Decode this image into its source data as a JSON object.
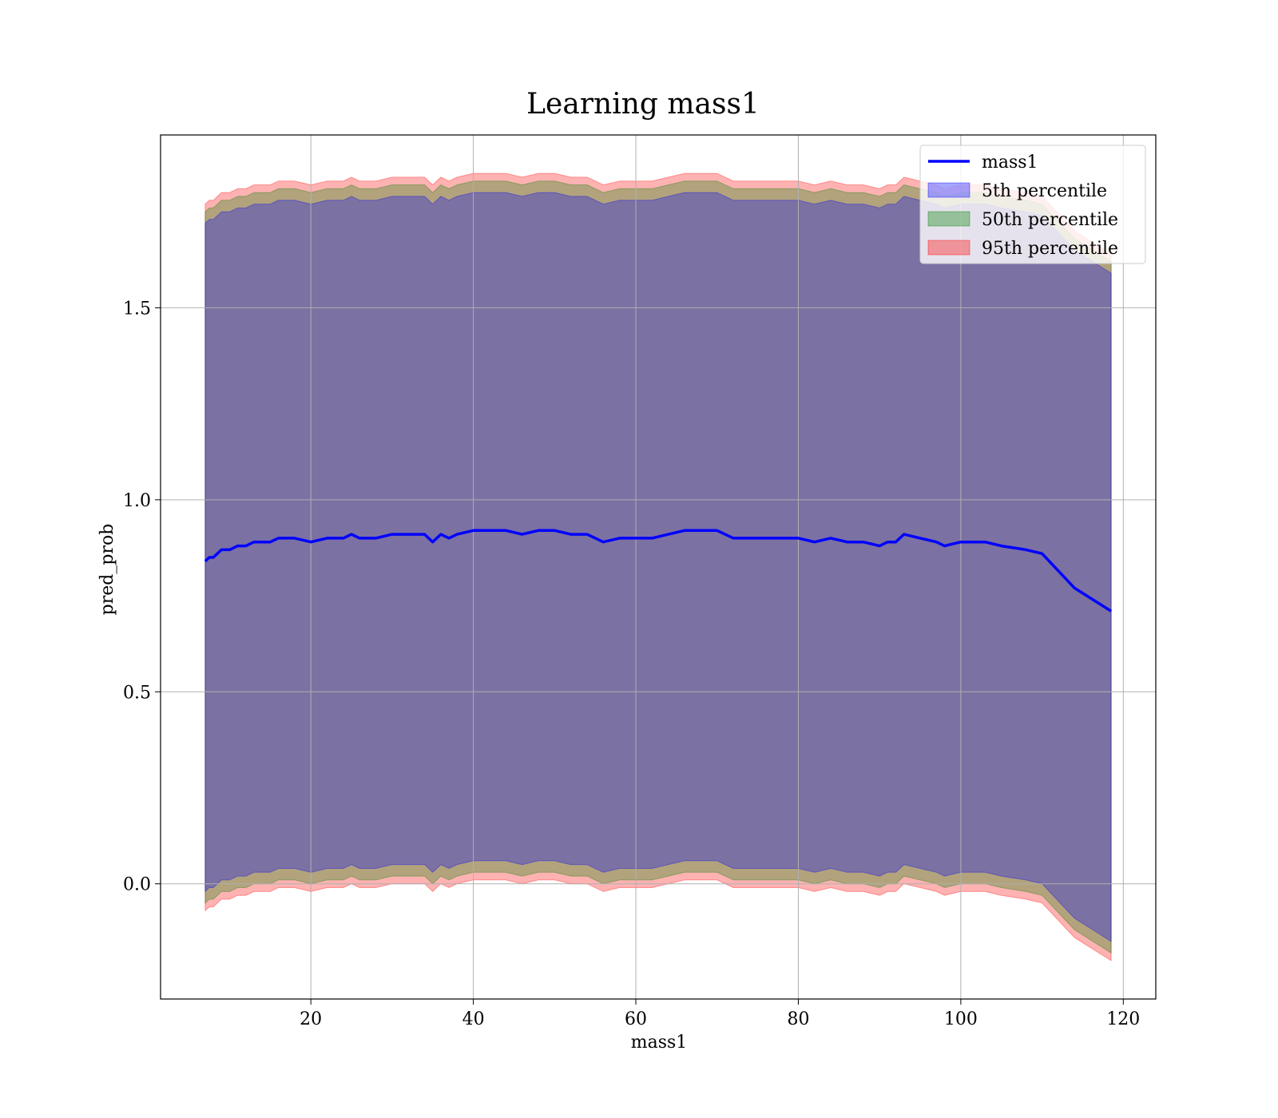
{
  "chart_data": {
    "type": "line",
    "title": "Learning mass1",
    "xlabel": "mass1",
    "ylabel": "pred_prob",
    "xlim": [
      1.5,
      124
    ],
    "ylim": [
      -0.3,
      1.95
    ],
    "xticks": [
      20,
      40,
      60,
      80,
      100,
      120
    ],
    "yticks": [
      0.0,
      0.5,
      1.0,
      1.5
    ],
    "grid": true,
    "legend_position": "top-right",
    "legend": [
      "mass1",
      "5th percentile",
      "50th percentile",
      "95th percentile"
    ],
    "series": [
      {
        "name": "mass1",
        "kind": "line",
        "color": "#0000ff",
        "x": [
          7,
          7.5,
          8,
          8.5,
          9,
          10,
          11,
          12,
          13,
          14,
          15,
          16,
          18,
          20,
          22,
          24,
          25,
          26,
          28,
          30,
          32,
          34,
          35,
          36,
          37,
          38,
          40,
          42,
          44,
          46,
          48,
          50,
          52,
          54,
          56,
          58,
          60,
          62,
          64,
          66,
          68,
          70,
          72,
          74,
          76,
          78,
          80,
          82,
          84,
          86,
          88,
          90,
          91,
          92,
          93,
          95,
          97,
          98,
          100,
          103,
          105,
          108,
          110,
          114,
          118.5
        ],
        "y": [
          0.84,
          0.85,
          0.85,
          0.86,
          0.87,
          0.87,
          0.88,
          0.88,
          0.89,
          0.89,
          0.89,
          0.9,
          0.9,
          0.89,
          0.9,
          0.9,
          0.91,
          0.9,
          0.9,
          0.91,
          0.91,
          0.91,
          0.89,
          0.91,
          0.9,
          0.91,
          0.92,
          0.92,
          0.92,
          0.91,
          0.92,
          0.92,
          0.91,
          0.91,
          0.89,
          0.9,
          0.9,
          0.9,
          0.91,
          0.92,
          0.92,
          0.92,
          0.9,
          0.9,
          0.9,
          0.9,
          0.9,
          0.89,
          0.9,
          0.89,
          0.89,
          0.88,
          0.89,
          0.89,
          0.91,
          0.9,
          0.89,
          0.88,
          0.89,
          0.89,
          0.88,
          0.87,
          0.86,
          0.77,
          0.71
        ]
      },
      {
        "name": "5th percentile",
        "kind": "band",
        "color": "#0000ff",
        "upper_offset": 0.88,
        "lower_offset": -0.86
      },
      {
        "name": "50th percentile",
        "kind": "band",
        "color": "#008000",
        "upper_offset": 0.91,
        "lower_offset": -0.89
      },
      {
        "name": "95th percentile",
        "kind": "band",
        "color": "#ff0000",
        "upper_offset": 0.93,
        "lower_offset": -0.91
      }
    ]
  }
}
